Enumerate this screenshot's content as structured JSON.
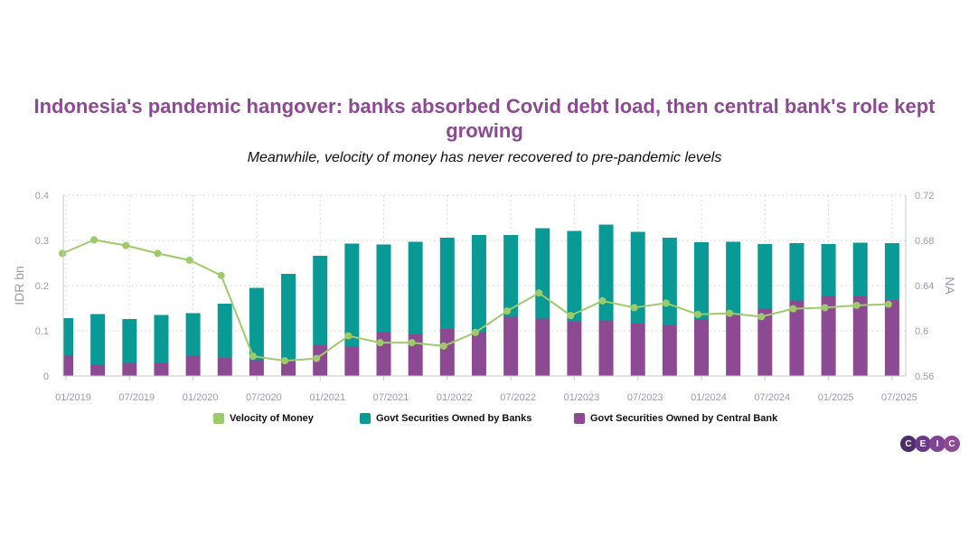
{
  "title": "Indonesia's pandemic hangover: banks absorbed Covid debt load, then central bank's role kept growing",
  "subtitle": "Meanwhile, velocity of money has never recovered to pre-pandemic levels",
  "colors": {
    "title": "#8c4a93",
    "banks": "#0a9a96",
    "central_bank": "#8c4a93",
    "velocity": "#9dcb6a",
    "grid": "#d9d9d9",
    "axis_text": "#9a9ab0"
  },
  "logo": {
    "letters": [
      "C",
      "E",
      "I",
      "C"
    ]
  },
  "chart_data": {
    "type": "bar",
    "stacked": true,
    "categories": [
      "01/2019",
      "04/2019",
      "07/2019",
      "10/2019",
      "01/2020",
      "04/2020",
      "07/2020",
      "10/2020",
      "01/2021",
      "04/2021",
      "07/2021",
      "10/2021",
      "01/2022",
      "04/2022",
      "07/2022",
      "10/2022",
      "01/2023",
      "04/2023",
      "07/2023",
      "10/2023",
      "01/2024",
      "04/2024",
      "07/2024",
      "10/2024",
      "01/2025",
      "04/2025",
      "07/2025"
    ],
    "x_tick_labels": [
      "01/2019",
      "07/2019",
      "01/2020",
      "07/2020",
      "01/2021",
      "07/2021",
      "01/2022",
      "07/2022",
      "01/2023",
      "07/2023",
      "01/2024",
      "07/2024",
      "01/2025",
      "07/2025"
    ],
    "series": [
      {
        "name": "Govt Securities Owned by Central Bank",
        "type": "bar",
        "axis": "left",
        "values": [
          0.045,
          0.025,
          0.028,
          0.029,
          0.045,
          0.04,
          0.035,
          0.038,
          0.068,
          0.066,
          0.097,
          0.092,
          0.104,
          0.096,
          0.131,
          0.127,
          0.121,
          0.123,
          0.116,
          0.113,
          0.125,
          0.138,
          0.149,
          0.167,
          0.177,
          0.177,
          0.168
        ]
      },
      {
        "name": "Govt Securities Owned by Banks",
        "type": "bar",
        "axis": "left",
        "values": [
          0.083,
          0.112,
          0.098,
          0.106,
          0.094,
          0.12,
          0.16,
          0.188,
          0.198,
          0.227,
          0.194,
          0.205,
          0.202,
          0.216,
          0.181,
          0.2,
          0.2,
          0.212,
          0.203,
          0.193,
          0.171,
          0.159,
          0.143,
          0.127,
          0.115,
          0.118,
          0.126
        ]
      },
      {
        "name": "Velocity of Money",
        "type": "line",
        "axis": "right",
        "values": [
          0.6685,
          0.6805,
          0.6755,
          0.6685,
          0.6625,
          0.649,
          0.5775,
          0.5735,
          0.5755,
          0.5955,
          0.5895,
          0.5895,
          0.5865,
          0.5985,
          0.6175,
          0.6335,
          0.6135,
          0.6265,
          0.6205,
          0.6245,
          0.6145,
          0.6155,
          0.6125,
          0.6195,
          0.6205,
          0.6225,
          0.6235
        ]
      }
    ],
    "legend": [
      "Velocity of Money",
      "Govt Securities Owned by Banks",
      "Govt Securities Owned by Central Bank"
    ],
    "ylabel_left": "IDR bn",
    "ylabel_right": "NA",
    "ylim_left": [
      0,
      0.4
    ],
    "ylim_right": [
      0.56,
      0.72
    ],
    "yticks_left": [
      "0",
      "0.1",
      "0.2",
      "0.3",
      "0.4"
    ],
    "yticks_right": [
      "0.56",
      "0.6",
      "0.64",
      "0.68",
      "0.72"
    ],
    "yticks_left_values": [
      0,
      0.1,
      0.2,
      0.3,
      0.4
    ],
    "yticks_right_values": [
      0.56,
      0.6,
      0.64,
      0.68,
      0.72
    ],
    "grid": true,
    "legend_position": "bottom"
  }
}
